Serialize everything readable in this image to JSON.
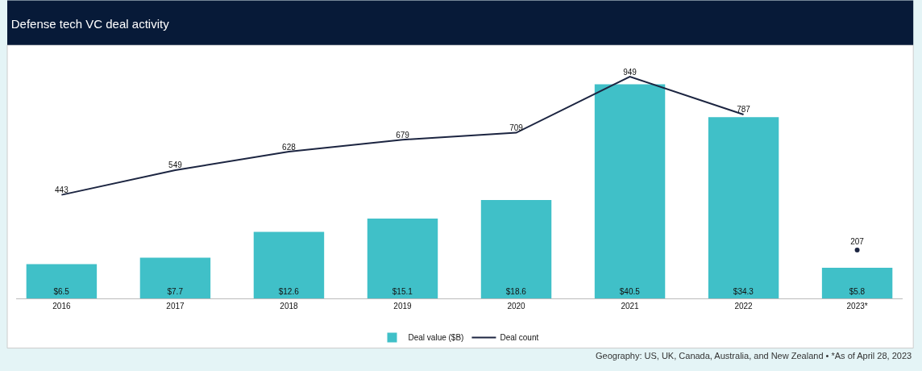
{
  "chart_data": {
    "type": "bar",
    "title": "Defense tech VC deal activity",
    "categories": [
      "2016",
      "2017",
      "2018",
      "2019",
      "2020",
      "2021",
      "2022",
      "2023*"
    ],
    "series": [
      {
        "name": "Deal value ($B)",
        "color": "#40c0c8",
        "values": [
          6.5,
          7.7,
          12.6,
          15.1,
          18.6,
          40.5,
          34.3,
          5.8
        ],
        "value_labels": [
          "$6.5",
          "$7.7",
          "$12.6",
          "$15.1",
          "$18.6",
          "$40.5",
          "$34.3",
          "$5.8"
        ]
      },
      {
        "name": "Deal count",
        "type": "line",
        "axis": "y2",
        "color": "#1c2541",
        "values": [
          443,
          549,
          628,
          679,
          709,
          949,
          787,
          null
        ],
        "value_labels": [
          "443",
          "549",
          "628",
          "679",
          "709",
          "949",
          "787",
          null
        ]
      },
      {
        "type": "scatter",
        "axis": "y2",
        "color": "#1c2541",
        "marker": "circle",
        "values": [
          null,
          null,
          null,
          null,
          null,
          null,
          null,
          207
        ],
        "value_labels": [
          null,
          null,
          null,
          null,
          null,
          null,
          null,
          "207"
        ]
      }
    ],
    "tick_labels": "x",
    "legend": "bottom",
    "annotations": [
      "Geography: US, UK, Canada, Australia, and New Zealand • *As of April 28, 2023"
    ]
  }
}
